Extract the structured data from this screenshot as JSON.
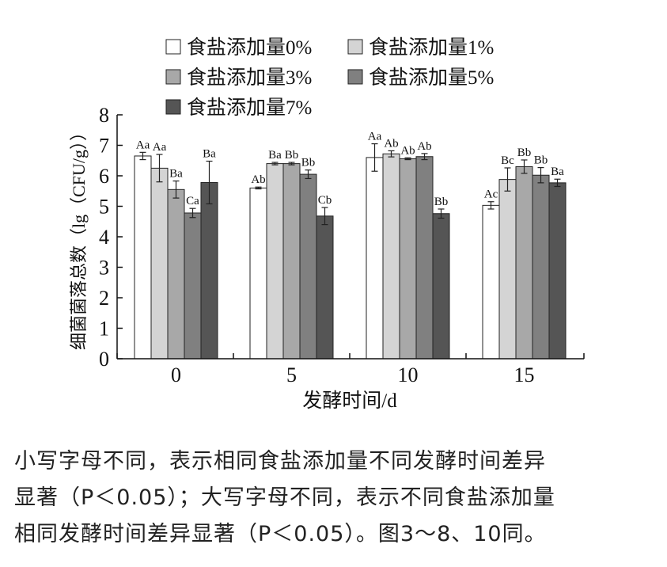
{
  "chart_data": {
    "type": "bar",
    "xlabel": "发酵时间/d",
    "ylabel": "细菌菌落总数（lg（CFU/g））",
    "ylim": [
      0,
      8
    ],
    "yticks": [
      0,
      1,
      2,
      3,
      4,
      5,
      6,
      7,
      8
    ],
    "categories": [
      "0",
      "5",
      "10",
      "15"
    ],
    "legend_position": "top",
    "series": [
      {
        "name": "食盐添加量0%",
        "color": "#ffffff",
        "values": [
          6.65,
          5.6,
          6.6,
          5.03
        ],
        "errors": [
          0.12,
          0.03,
          0.45,
          0.12
        ],
        "labels": [
          "Aa",
          "Ab",
          "Aa",
          "Ac"
        ]
      },
      {
        "name": "食盐添加量1%",
        "color": "#d4d4d4",
        "values": [
          6.25,
          6.4,
          6.72,
          5.88
        ],
        "errors": [
          0.45,
          0.04,
          0.1,
          0.38
        ],
        "labels": [
          "Aa",
          "Ba",
          "Ab",
          "Bc"
        ]
      },
      {
        "name": "食盐添加量3%",
        "color": "#a8a8a8",
        "values": [
          5.55,
          6.4,
          6.56,
          6.3
        ],
        "errors": [
          0.28,
          0.04,
          0.03,
          0.22
        ],
        "labels": [
          "Ba",
          "Bb",
          "Ab",
          "Bb"
        ]
      },
      {
        "name": "食盐添加量5%",
        "color": "#808080",
        "values": [
          4.78,
          6.05,
          6.63,
          6.02
        ],
        "errors": [
          0.15,
          0.14,
          0.1,
          0.25
        ],
        "labels": [
          "Ca",
          "Bb",
          "Ab",
          "Bb"
        ]
      },
      {
        "name": "食盐添加量7%",
        "color": "#555555",
        "values": [
          5.78,
          4.68,
          4.76,
          5.77
        ],
        "errors": [
          0.7,
          0.28,
          0.15,
          0.12
        ],
        "labels": [
          "Ba",
          "Cb",
          "Bb",
          "Ba"
        ]
      }
    ]
  },
  "caption": {
    "line1": "小写字母不同，表示相同食盐添加量不同发酵时间差异",
    "line2": "显著（P＜0.05）；大写字母不同，表示不同食盐添加量",
    "line3": "相同发酵时间差异显著（P＜0.05）。图3～8、10同。"
  }
}
